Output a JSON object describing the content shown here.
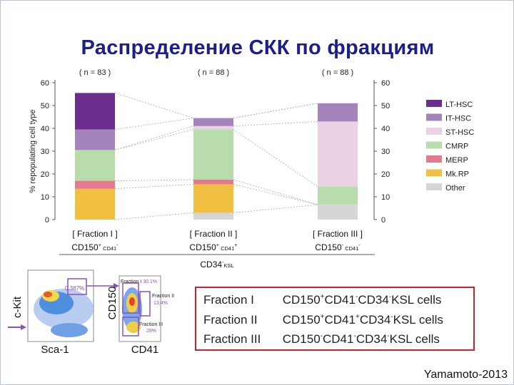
{
  "slide": {
    "title": "Распределение СКК по фракциям",
    "credit": "Yamamoto-2013"
  },
  "chart_data": {
    "type": "bar",
    "stacked": true,
    "ylabel": "% repopulating cell type",
    "ylim": [
      0,
      60
    ],
    "yticks": [
      0,
      10,
      20,
      30,
      40,
      50,
      60
    ],
    "categories": [
      "[ Fraction I ]",
      "[ Fraction II ]",
      "[ Fraction III ]"
    ],
    "n_labels": [
      "( n = 83 )",
      "( n = 88 )",
      "( n = 88 )"
    ],
    "phenotypes": [
      {
        "pre": "CD150",
        "pre_sup": "+",
        "post": "CD41",
        "post_sup": "-"
      },
      {
        "pre": "CD150",
        "pre_sup": "+",
        "post": "CD41",
        "post_sup": "+"
      },
      {
        "pre": "CD150",
        "pre_sup": "-",
        "post": "CD41",
        "post_sup": "-"
      }
    ],
    "group_label": {
      "pre": "CD34",
      "pre_sup": "-",
      "post": "KSL"
    },
    "series": [
      {
        "name": "Other",
        "color": "#d6d6d6",
        "values": [
          0,
          3,
          6.5
        ]
      },
      {
        "name": "Mk.RP",
        "color": "#f1c042",
        "values": [
          13.5,
          12.5,
          0
        ]
      },
      {
        "name": "MERP",
        "color": "#e47a8e",
        "values": [
          3.5,
          2,
          0
        ]
      },
      {
        "name": "CMRP",
        "color": "#b9dcad",
        "values": [
          13.5,
          22,
          8
        ]
      },
      {
        "name": "ST-HSC",
        "color": "#ead1e4",
        "values": [
          0,
          1.5,
          28.5
        ]
      },
      {
        "name": "IT-HSC",
        "color": "#a583bd",
        "values": [
          9,
          3.5,
          8
        ]
      },
      {
        "name": "LT-HSC",
        "color": "#6a2e8f",
        "values": [
          16,
          0,
          0
        ]
      }
    ]
  },
  "flow": {
    "gate_pct": "0.387%",
    "x_axis_1": "Sca-1",
    "y_axis_1": "c-Kit",
    "x_axis_2": "CD41",
    "y_axis_2": "CD150",
    "frac1": "Fraction I",
    "frac1_pct": "30.1%",
    "frac2": "Fraction II",
    "frac2_pct": "13.4%",
    "frac3": "Fraction III",
    "frac3_pct": "28%"
  },
  "fraction_table": [
    {
      "name": "Fraction I",
      "parts": [
        [
          "CD150",
          "+"
        ],
        [
          "CD41",
          "-"
        ],
        [
          "CD34",
          "-"
        ],
        [
          "KSL cells",
          ""
        ]
      ]
    },
    {
      "name": "Fraction II",
      "parts": [
        [
          "CD150",
          "+"
        ],
        [
          "CD41",
          "+"
        ],
        [
          "CD34",
          "-"
        ],
        [
          "KSL cells",
          ""
        ]
      ]
    },
    {
      "name": "Fraction III",
      "parts": [
        [
          "CD150",
          "-"
        ],
        [
          "CD41",
          "-"
        ],
        [
          "CD34",
          "-"
        ],
        [
          "KSL cells",
          ""
        ]
      ]
    }
  ]
}
